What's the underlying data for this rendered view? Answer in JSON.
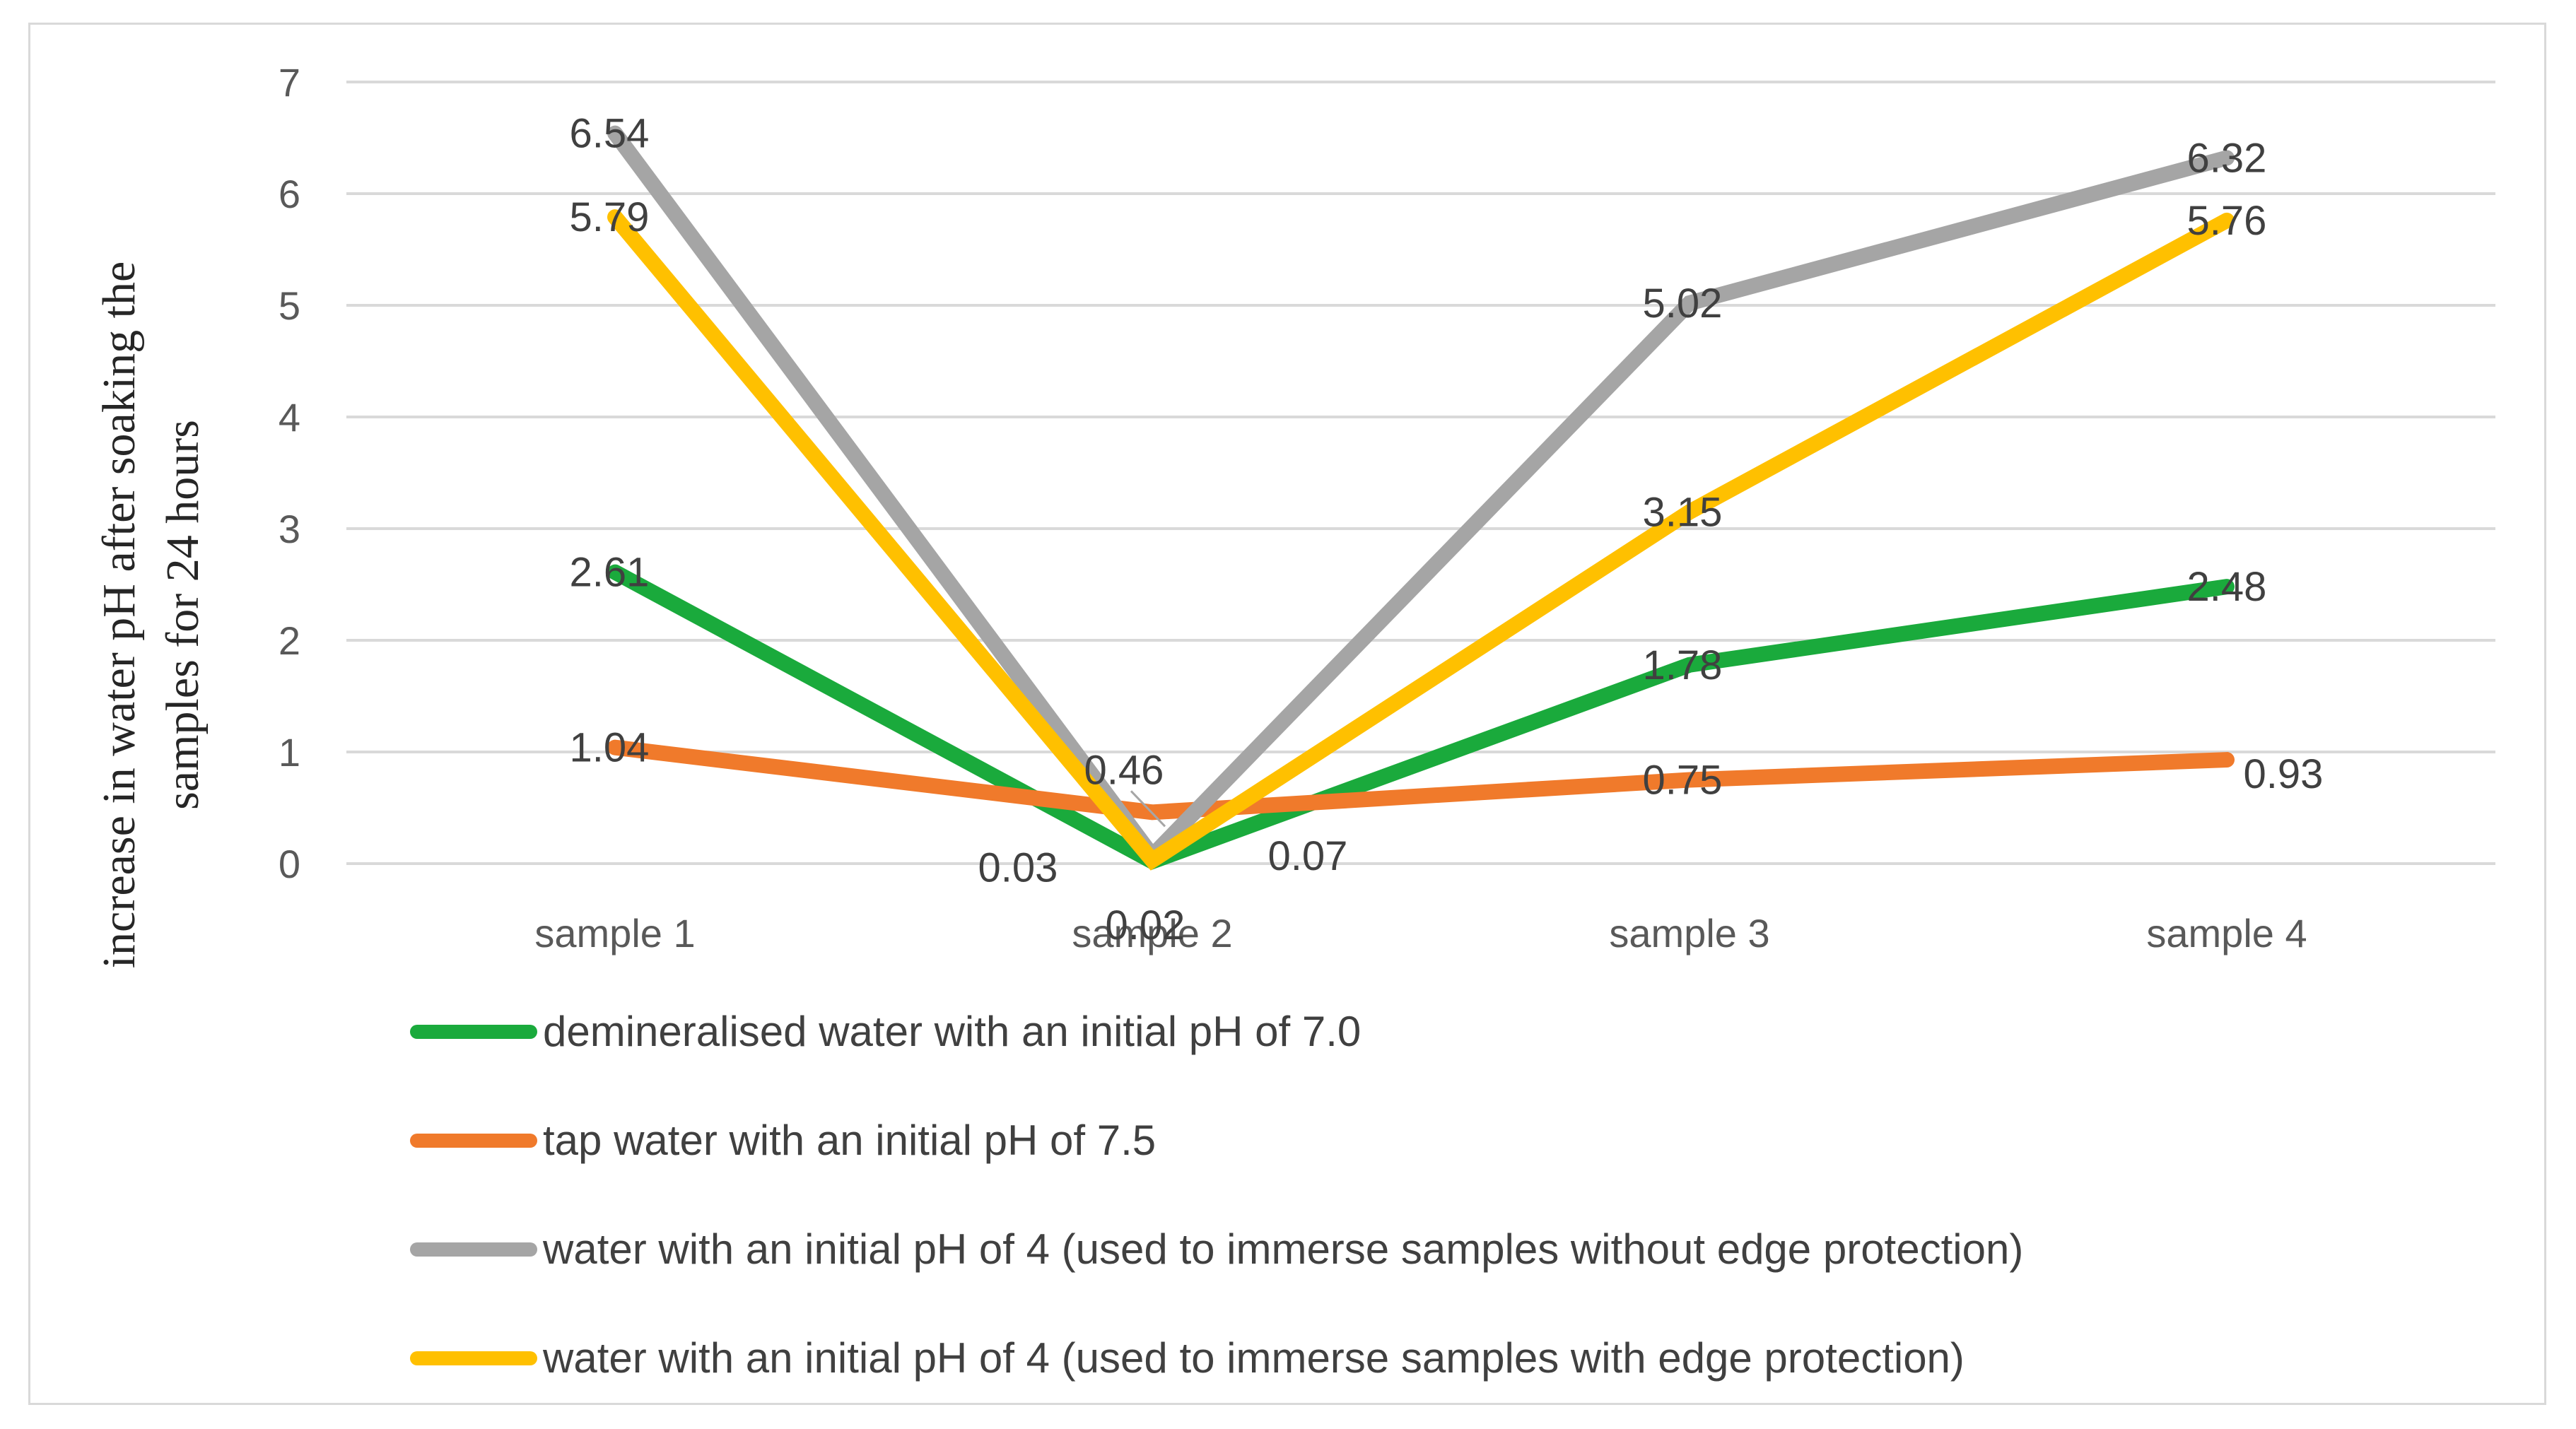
{
  "chart_data": {
    "type": "line",
    "title": "",
    "xlabel": "",
    "ylabel": "increase in water pH after soaking the samples for 24 hours",
    "ylim": [
      0,
      7
    ],
    "yticks": [
      "0",
      "1",
      "2",
      "3",
      "4",
      "5",
      "6",
      "7"
    ],
    "grid": true,
    "legend_position": "bottom",
    "categories": [
      "sample 1",
      "sample 2",
      "sample 3",
      "sample 4"
    ],
    "series": [
      {
        "name": "demineralised water with an initial pH of 7.0",
        "color": "#1aaa3c",
        "values": [
          2.61,
          0.02,
          1.78,
          2.48
        ],
        "labels": [
          "2.61",
          "0.02",
          "1.78",
          "2.48"
        ]
      },
      {
        "name": "tap water with an initial pH of 7.5",
        "color": "#f07a2b",
        "values": [
          1.04,
          0.46,
          0.75,
          0.93
        ],
        "labels": [
          "1.04",
          "0.46",
          "0.75",
          "0.93"
        ]
      },
      {
        "name": "water with an initial pH of 4 (used to immerse samples without edge protection)",
        "color": "#a5a5a5",
        "values": [
          6.54,
          0.07,
          5.02,
          6.32
        ],
        "labels": [
          "6.54",
          "0.07",
          "5.02",
          "6.32"
        ]
      },
      {
        "name": "water with an initial pH of 4 (used to immerse samples with edge protection)",
        "color": "#ffc000",
        "values": [
          5.79,
          0.03,
          3.15,
          5.76
        ],
        "labels": [
          "5.79",
          "0.03",
          "3.15",
          "5.76"
        ]
      }
    ]
  }
}
